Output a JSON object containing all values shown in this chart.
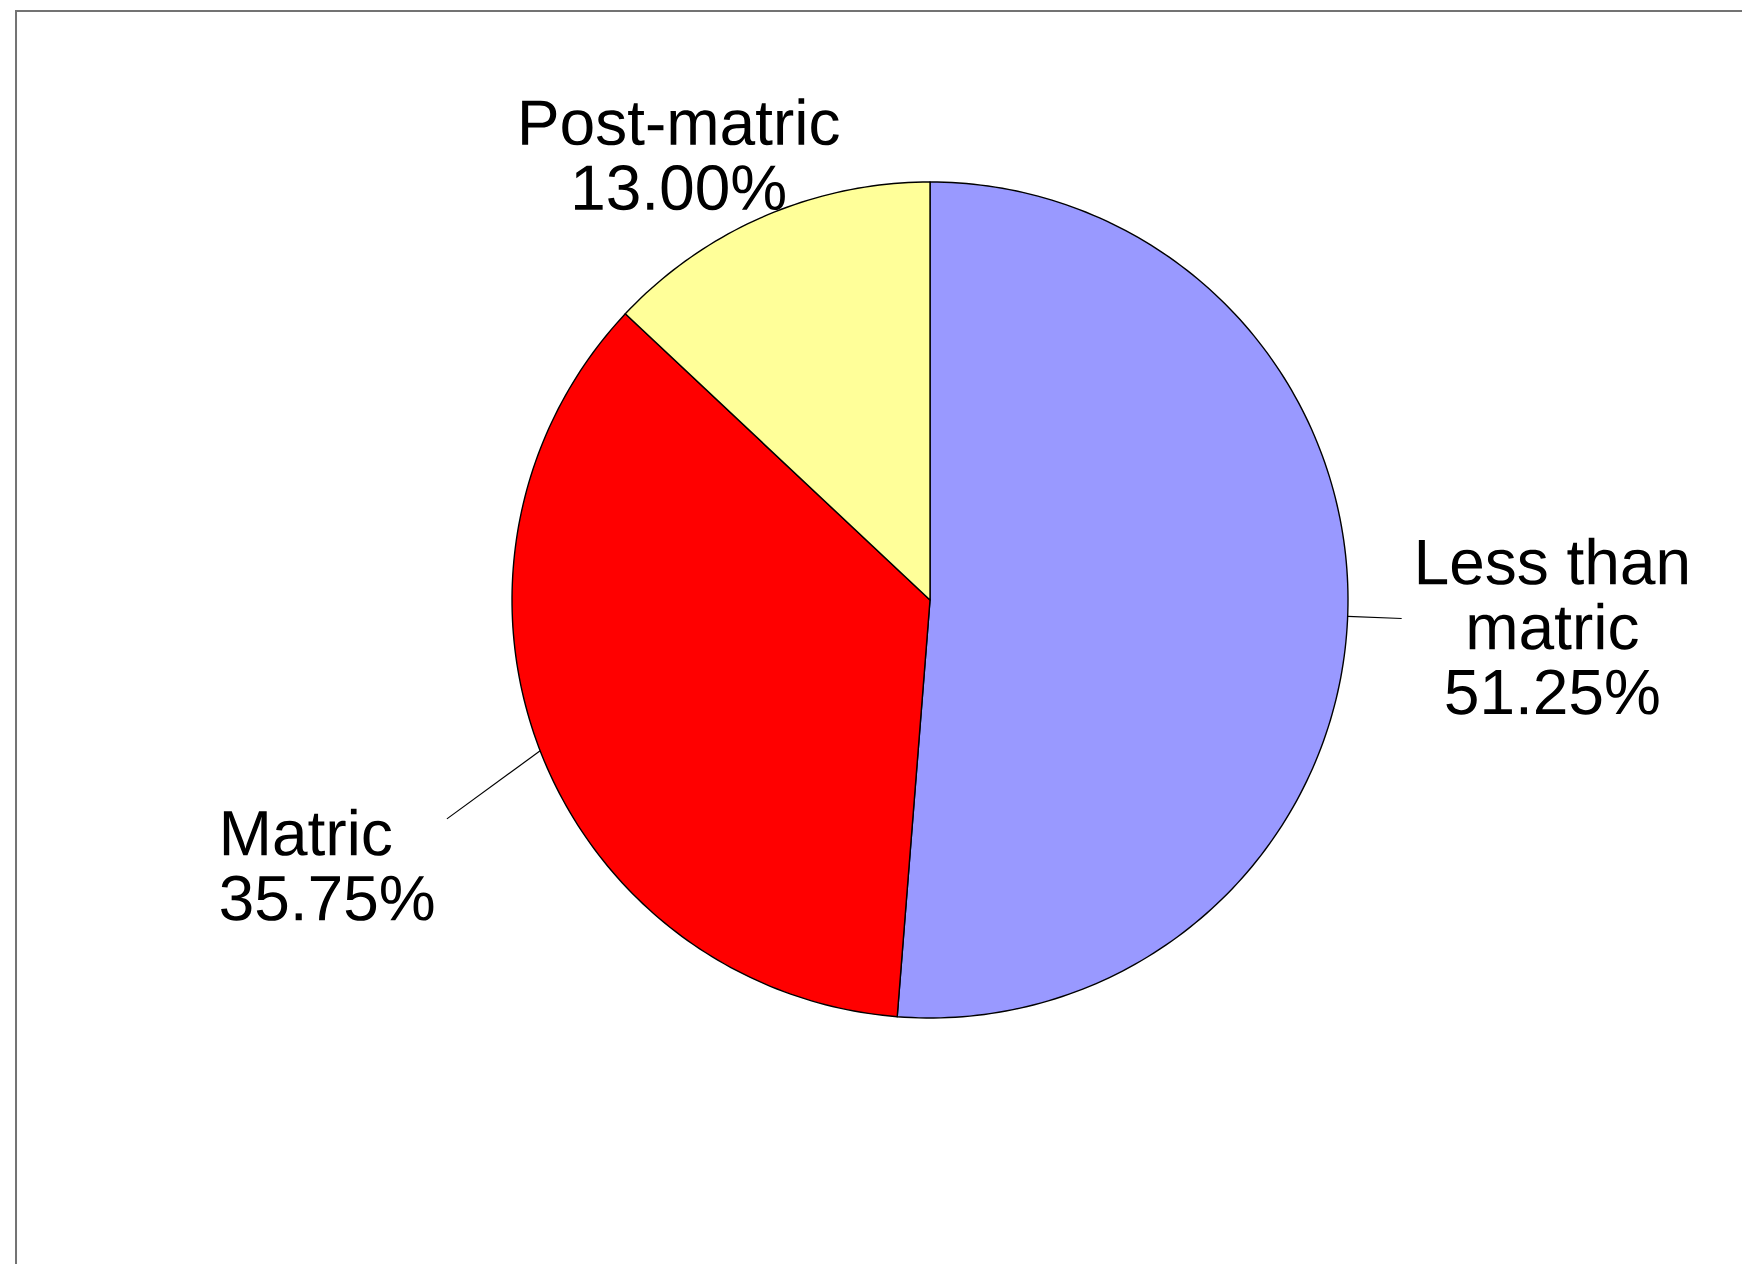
{
  "chart_data": {
    "type": "pie",
    "categories": [
      "Less than matric",
      "Matric",
      "Post-matric"
    ],
    "values": [
      51.25,
      35.75,
      13.0
    ],
    "colors": [
      "#9999ff",
      "#ff0000",
      "#ffff99"
    ],
    "value_labels": [
      "51.25%",
      "35.75%",
      "13.00%"
    ]
  }
}
